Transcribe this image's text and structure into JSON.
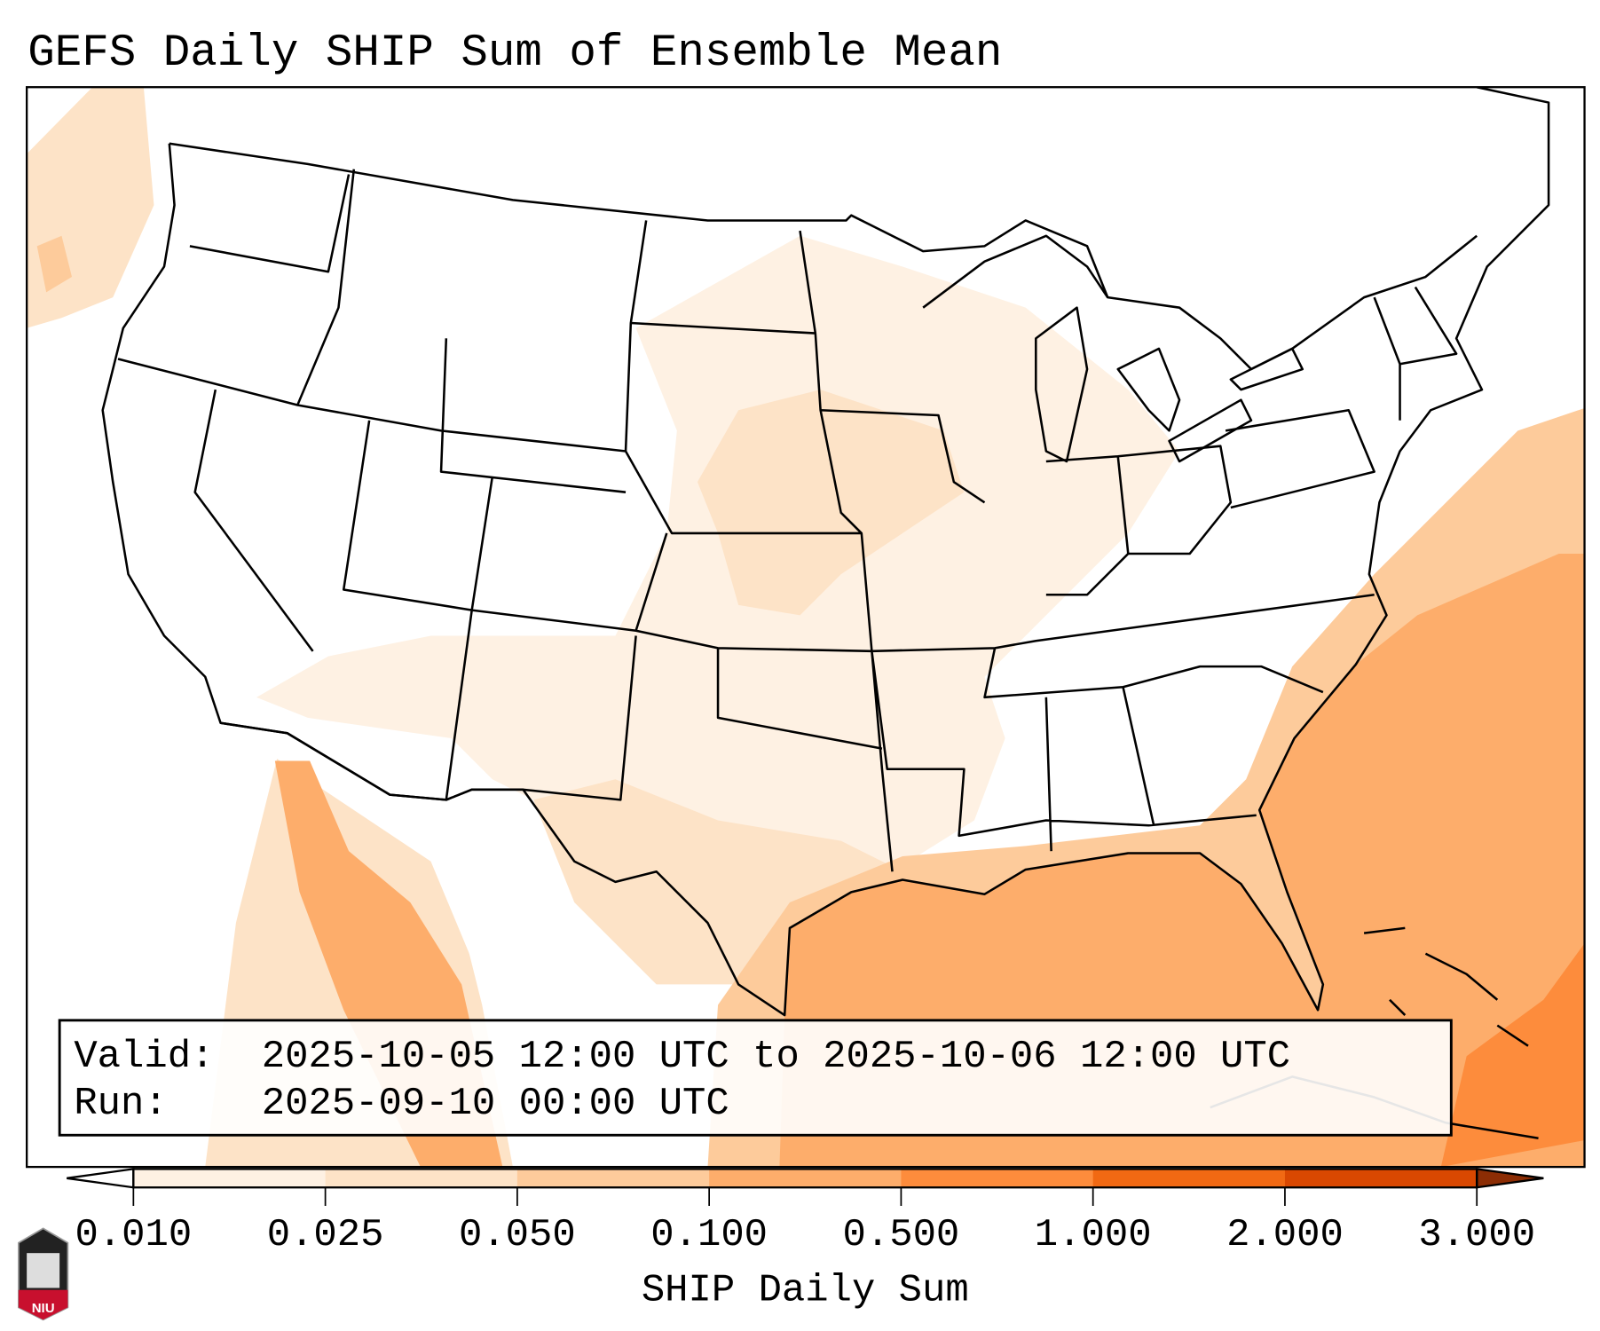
{
  "title": "GEFS Daily SHIP Sum of Ensemble Mean",
  "info_box": {
    "valid_label": "Valid:",
    "valid_value": "2025-10-05 12:00 UTC to 2025-10-06 12:00 UTC",
    "run_label": "Run:",
    "run_value": "2025-09-10 00:00 UTC"
  },
  "colorbar": {
    "label": "SHIP Daily Sum",
    "ticks": [
      "0.010",
      "0.025",
      "0.050",
      "0.100",
      "0.500",
      "1.000",
      "2.000",
      "3.000"
    ],
    "colors": [
      "#fef1e3",
      "#fde3c7",
      "#fdcb9b",
      "#fdad6b",
      "#fd8c3c",
      "#f16913",
      "#d94801",
      "#8c2d04"
    ],
    "extend": "both"
  },
  "logo": {
    "text": "NIU",
    "color": "#c8102e"
  }
}
